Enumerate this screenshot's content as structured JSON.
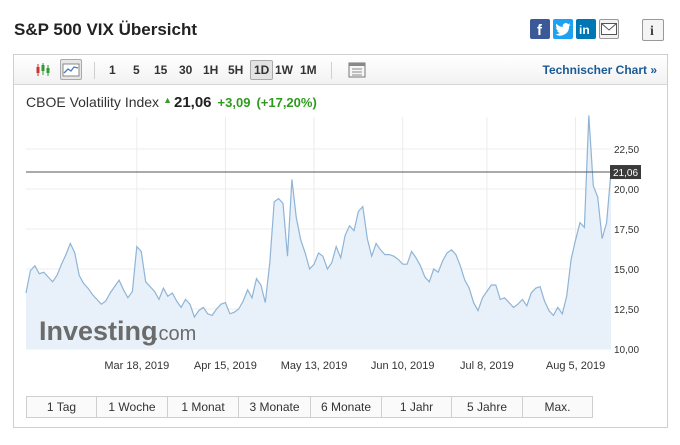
{
  "page": {
    "title": "S&P 500 VIX Übersicht"
  },
  "share": {
    "facebook": "f",
    "twitter": "t",
    "linkedin": "in",
    "info": "i"
  },
  "toolbar": {
    "timeframes": [
      "1",
      "5",
      "15",
      "30",
      "1H",
      "5H",
      "1D",
      "1W",
      "1M"
    ],
    "active_timeframe": "1D",
    "technical_chart_label": "Technischer Chart »"
  },
  "quote": {
    "name": "CBOE Volatility Index",
    "last": "21,06",
    "change_abs": "+3,09",
    "change_pct": "(+17,20%)"
  },
  "periods": [
    "1 Tag",
    "1 Woche",
    "1 Monat",
    "3 Monate",
    "6 Monate",
    "1 Jahr",
    "5 Jahre",
    "Max."
  ],
  "watermark": {
    "brand": "Investing",
    "suffix": ".com"
  },
  "colors": {
    "line": "#8fb4d6",
    "area": "#e8f1f9",
    "positive": "#2f9b1e",
    "link": "#1a5a96",
    "last_price_line": "#555555",
    "last_price_label_bg": "#3a3a3a"
  },
  "chart_data": {
    "type": "area",
    "ylim": [
      10.0,
      24.5
    ],
    "yticks": [
      "10,00",
      "12,50",
      "15,00",
      "17,50",
      "20,00",
      "22,50"
    ],
    "ytick_values": [
      10,
      12.5,
      15,
      17.5,
      20,
      22.5
    ],
    "xticks": [
      {
        "label": "Mar 18, 2019",
        "index": 25
      },
      {
        "label": "Apr 15, 2019",
        "index": 45
      },
      {
        "label": "May 13, 2019",
        "index": 65
      },
      {
        "label": "Jun 10, 2019",
        "index": 85
      },
      {
        "label": "Jul 8, 2019",
        "index": 104
      },
      {
        "label": "Aug 5, 2019",
        "index": 124
      }
    ],
    "last_price": 21.06,
    "last_price_label": "21,06",
    "grid": true,
    "series": [
      {
        "values": [
          13.5,
          14.9,
          15.2,
          14.7,
          14.8,
          14.5,
          14.2,
          14.6,
          15.3,
          15.9,
          16.6,
          16.0,
          14.6,
          14.1,
          13.8,
          13.4,
          13.1,
          12.8,
          13.0,
          13.5,
          13.9,
          14.3,
          13.7,
          13.2,
          13.6,
          16.4,
          16.1,
          14.2,
          13.9,
          13.6,
          13.1,
          13.8,
          13.3,
          13.5,
          13.0,
          12.6,
          13.1,
          12.8,
          12.0,
          12.4,
          12.6,
          12.2,
          12.1,
          12.5,
          12.8,
          12.9,
          12.2,
          12.3,
          12.5,
          13.0,
          13.7,
          13.2,
          14.4,
          14.0,
          12.9,
          15.4,
          19.2,
          19.4,
          19.1,
          15.8,
          20.6,
          18.2,
          16.8,
          16.0,
          15.0,
          15.3,
          16.0,
          15.8,
          15.0,
          15.4,
          16.4,
          15.7,
          17.1,
          17.7,
          17.4,
          18.6,
          18.9,
          16.9,
          15.8,
          16.6,
          16.2,
          15.9,
          15.9,
          15.8,
          15.6,
          15.3,
          15.3,
          16.1,
          15.7,
          15.2,
          14.5,
          14.2,
          15.0,
          14.8,
          15.5,
          16.0,
          16.2,
          15.9,
          15.2,
          14.3,
          13.8,
          12.9,
          12.4,
          13.2,
          13.6,
          14.0,
          14.0,
          13.1,
          13.2,
          12.9,
          12.6,
          12.8,
          13.1,
          12.7,
          13.5,
          13.8,
          13.9,
          13.0,
          12.4,
          12.1,
          12.6,
          12.2,
          13.3,
          15.6,
          16.8,
          17.9,
          17.6,
          24.6,
          20.2,
          19.5,
          16.9,
          17.9,
          21.1
        ]
      }
    ]
  }
}
